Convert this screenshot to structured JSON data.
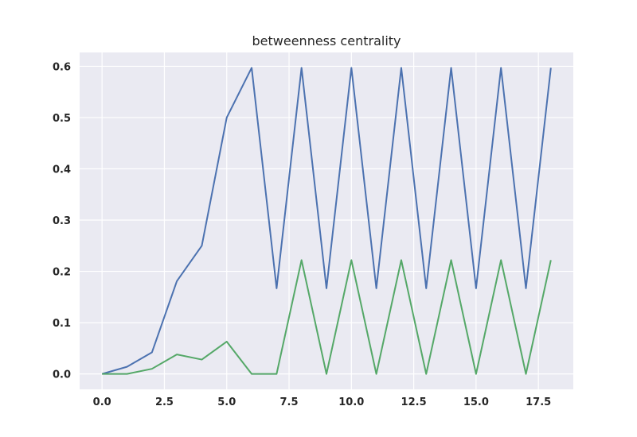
{
  "chart_data": {
    "type": "line",
    "title": "betweenness centrality",
    "xlabel": "",
    "ylabel": "",
    "xlim": [
      -0.9,
      18.9
    ],
    "ylim": [
      -0.03,
      0.627
    ],
    "grid": true,
    "x_ticks": [
      0,
      2.5,
      5,
      7.5,
      10,
      12.5,
      15,
      17.5
    ],
    "x_tick_labels": [
      "0.0",
      "2.5",
      "5.0",
      "7.5",
      "10.0",
      "12.5",
      "15.0",
      "17.5"
    ],
    "y_ticks": [
      0,
      0.1,
      0.2,
      0.3,
      0.4,
      0.5,
      0.6
    ],
    "y_tick_labels": [
      "0.0",
      "0.1",
      "0.2",
      "0.3",
      "0.4",
      "0.5",
      "0.6"
    ],
    "x": [
      0,
      1,
      2,
      3,
      4,
      5,
      6,
      7,
      8,
      9,
      10,
      11,
      12,
      13,
      14,
      15,
      16,
      17,
      18
    ],
    "series": [
      {
        "color": "#4c72b0",
        "values": [
          0.0,
          0.014,
          0.042,
          0.181,
          0.25,
          0.5,
          0.597,
          0.167,
          0.597,
          0.167,
          0.597,
          0.167,
          0.597,
          0.167,
          0.597,
          0.167,
          0.597,
          0.167,
          0.597
        ]
      },
      {
        "color": "#55a868",
        "values": [
          0.0,
          0.0,
          0.01,
          0.038,
          0.028,
          0.063,
          0.0,
          0.0,
          0.222,
          0.0,
          0.222,
          0.0,
          0.222,
          0.0,
          0.222,
          0.0,
          0.222,
          0.0,
          0.222
        ]
      }
    ]
  },
  "colors": {
    "plot_background": "#eaeaf2",
    "grid": "#ffffff",
    "text": "#262626"
  }
}
